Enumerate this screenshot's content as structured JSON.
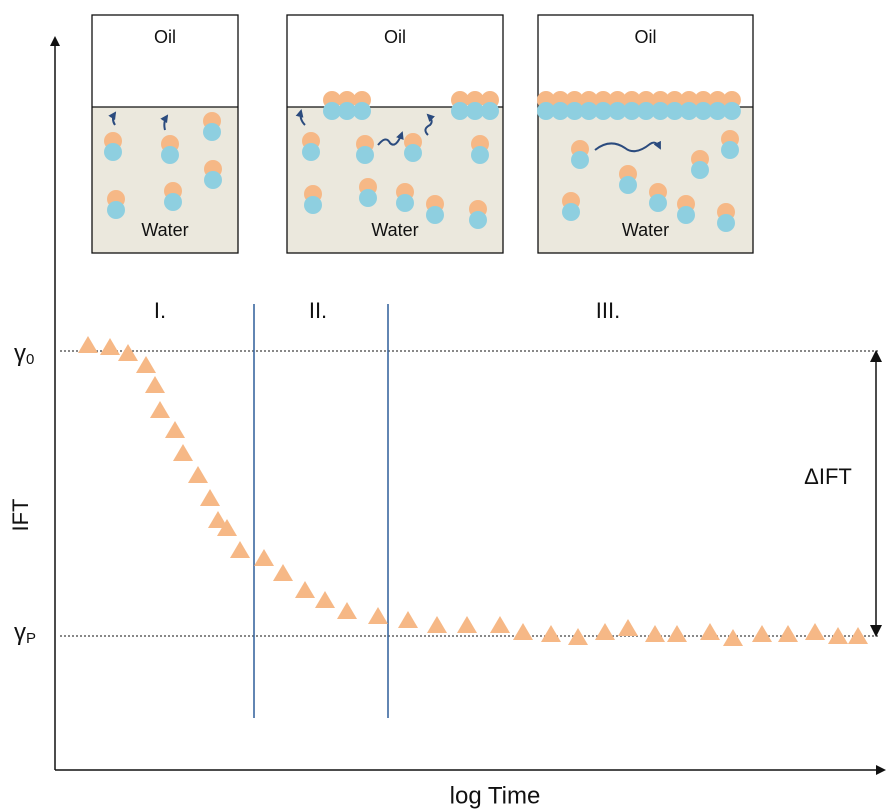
{
  "panels": [
    {
      "top": "Oil",
      "bottom": "Water"
    },
    {
      "top": "Oil",
      "bottom": "Water"
    },
    {
      "top": "Oil",
      "bottom": "Water"
    }
  ],
  "regions": [
    "I.",
    "II.",
    "III."
  ],
  "y_axis": {
    "label": "IFT",
    "levels": [
      {
        "symbol": "γ",
        "subscript": "0"
      },
      {
        "symbol": "γ",
        "subscript": "P"
      }
    ]
  },
  "x_axis": {
    "label": "log Time"
  },
  "delta_label": "ΔIFT"
}
